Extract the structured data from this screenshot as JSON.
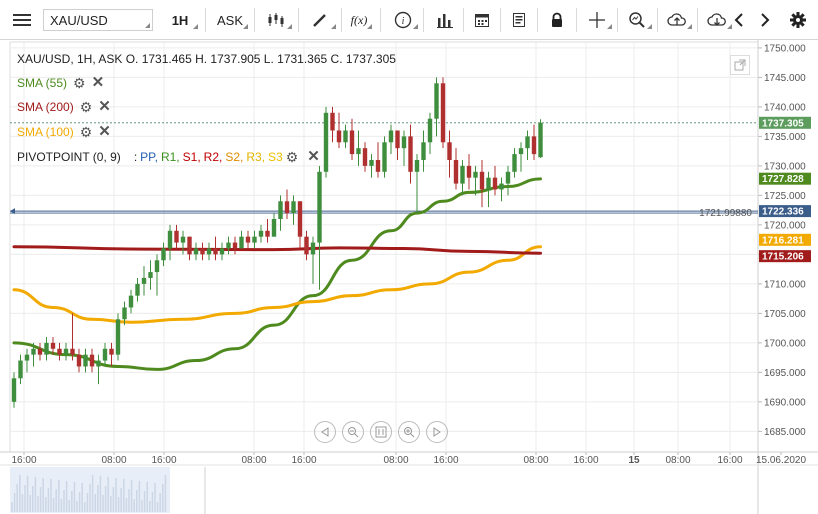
{
  "toolbar": {
    "symbol": "XAU/USD",
    "timeframe": "1H",
    "price_side": "ASK",
    "icons": [
      "menu-icon",
      "candles-icon",
      "draw-icon",
      "fx-icon",
      "info-icon",
      "bar-chart-icon",
      "calendar-icon",
      "news-icon",
      "lock-icon",
      "crosshair-icon",
      "zoom-icon",
      "upload-icon",
      "download-icon",
      "arrow-left-icon",
      "arrow-right-icon",
      "settings-icon"
    ],
    "fx_label": "f(x)"
  },
  "header": {
    "ohlc": "XAU/USD, 1H, ASK   O. 1731.465 H. 1737.905 L. 1731.365 C. 1737.305"
  },
  "indicators": [
    {
      "label": "SMA (55)",
      "color": "#4e8a1e"
    },
    {
      "label": "SMA (200)",
      "color": "#a11b1b"
    },
    {
      "label": "SMA (100)",
      "color": "#f2a900"
    }
  ],
  "pivot": {
    "label": "PIVOTPOINT (0, 9)",
    "sep": ":",
    "items": [
      {
        "label": "PP,",
        "color": "#1f5fb4"
      },
      {
        "label": "R1,",
        "color": "#3a8f1e"
      },
      {
        "label": "S1,",
        "color": "#c00000"
      },
      {
        "label": "R2,",
        "color": "#c00000"
      },
      {
        "label": "S2,",
        "color": "#e08a00"
      },
      {
        "label": "R3,",
        "color": "#e0b400"
      },
      {
        "label": "S3",
        "color": "#f0c000"
      }
    ]
  },
  "price_tags": {
    "last": "1737.305",
    "sma55": "1727.828",
    "hline": "1722.336",
    "hline_left": "1721.99880",
    "sma100": "1716.281",
    "sma200": "1715.206"
  },
  "nav_buttons": [
    "prev-icon",
    "zoom-out-icon",
    "reset-icon",
    "zoom-in-icon",
    "next-icon"
  ],
  "chart_data": {
    "type": "candlestick",
    "symbol": "XAU/USD",
    "interval": "1H",
    "y_ticks": [
      "1750.000",
      "1745.000",
      "1740.000",
      "1735.000",
      "1730.000",
      "1725.000",
      "1720.000",
      "1715.000",
      "1710.000",
      "1705.000",
      "1700.000",
      "1695.000",
      "1690.000",
      "1685.000"
    ],
    "ylim": [
      1681.5,
      1751
    ],
    "x_ticks": [
      "16:00",
      "08:00",
      "16:00",
      "08:00",
      "16:00",
      "08:00",
      "16:00",
      "08:00",
      "16:00",
      "15",
      "08:00",
      "16:00",
      "15.06.2020"
    ],
    "candles": [
      [
        1690,
        1695,
        1689,
        1694
      ],
      [
        1694,
        1698,
        1693,
        1697
      ],
      [
        1697,
        1699,
        1695,
        1698
      ],
      [
        1698,
        1700,
        1696,
        1699
      ],
      [
        1699,
        1700,
        1697,
        1698
      ],
      [
        1698,
        1701,
        1697,
        1700
      ],
      [
        1700,
        1701,
        1698,
        1699
      ],
      [
        1699,
        1700,
        1697,
        1698
      ],
      [
        1698,
        1700,
        1697,
        1699
      ],
      [
        1699,
        1705,
        1697,
        1698
      ],
      [
        1698,
        1699,
        1695,
        1696
      ],
      [
        1696,
        1699,
        1695,
        1698
      ],
      [
        1698,
        1699,
        1695,
        1696
      ],
      [
        1696,
        1698,
        1693,
        1697
      ],
      [
        1697,
        1700,
        1696,
        1699
      ],
      [
        1699,
        1700,
        1696,
        1698
      ],
      [
        1698,
        1705,
        1697,
        1704
      ],
      [
        1704,
        1707,
        1703,
        1706
      ],
      [
        1706,
        1709,
        1705,
        1708
      ],
      [
        1708,
        1711,
        1707,
        1710
      ],
      [
        1710,
        1713,
        1708,
        1711
      ],
      [
        1711,
        1714,
        1709,
        1712
      ],
      [
        1712,
        1715,
        1708,
        1714
      ],
      [
        1714,
        1717,
        1713,
        1716
      ],
      [
        1716,
        1720,
        1714,
        1719
      ],
      [
        1719,
        1720,
        1716,
        1717
      ],
      [
        1717,
        1719,
        1715,
        1718
      ],
      [
        1718,
        1718,
        1714,
        1715
      ],
      [
        1715,
        1717,
        1714,
        1716
      ],
      [
        1716,
        1717,
        1714,
        1715
      ],
      [
        1715,
        1717,
        1714,
        1716
      ],
      [
        1716,
        1718,
        1714,
        1715
      ],
      [
        1715,
        1717,
        1714,
        1716
      ],
      [
        1716,
        1718,
        1715,
        1717
      ],
      [
        1717,
        1718,
        1715,
        1716
      ],
      [
        1716,
        1719,
        1716,
        1718
      ],
      [
        1718,
        1719,
        1716,
        1717
      ],
      [
        1717,
        1719,
        1716,
        1718
      ],
      [
        1718,
        1720,
        1717,
        1719
      ],
      [
        1719,
        1721,
        1717,
        1718
      ],
      [
        1718,
        1722,
        1718,
        1721
      ],
      [
        1721,
        1725,
        1719,
        1724
      ],
      [
        1724,
        1726,
        1721,
        1722
      ],
      [
        1722,
        1725,
        1720,
        1724
      ],
      [
        1724,
        1724,
        1716,
        1718
      ],
      [
        1718,
        1719,
        1714,
        1715
      ],
      [
        1715,
        1718,
        1710,
        1717
      ],
      [
        1717,
        1730,
        1709,
        1729
      ],
      [
        1729,
        1740,
        1728,
        1739
      ],
      [
        1739,
        1740,
        1734,
        1736
      ],
      [
        1736,
        1739,
        1733,
        1734
      ],
      [
        1734,
        1737,
        1733,
        1736
      ],
      [
        1736,
        1738,
        1731,
        1732
      ],
      [
        1732,
        1736,
        1730,
        1733
      ],
      [
        1733,
        1734,
        1729,
        1730
      ],
      [
        1730,
        1732,
        1728,
        1731
      ],
      [
        1731,
        1734,
        1728,
        1729
      ],
      [
        1729,
        1735,
        1728,
        1734
      ],
      [
        1734,
        1737,
        1732,
        1736
      ],
      [
        1736,
        1736,
        1731,
        1733
      ],
      [
        1733,
        1736,
        1730,
        1735
      ],
      [
        1735,
        1737,
        1727,
        1729
      ],
      [
        1729,
        1732,
        1722,
        1731
      ],
      [
        1731,
        1736,
        1729,
        1734
      ],
      [
        1734,
        1739,
        1732,
        1738
      ],
      [
        1738,
        1745,
        1735,
        1744
      ],
      [
        1744,
        1745,
        1733,
        1734
      ],
      [
        1734,
        1736,
        1728,
        1731
      ],
      [
        1731,
        1733,
        1726,
        1727
      ],
      [
        1727,
        1731,
        1725,
        1730
      ],
      [
        1730,
        1732,
        1726,
        1728
      ],
      [
        1728,
        1730,
        1725,
        1729
      ],
      [
        1729,
        1731,
        1723,
        1726
      ],
      [
        1726,
        1729,
        1723,
        1728
      ],
      [
        1728,
        1730,
        1725,
        1726
      ],
      [
        1726,
        1728,
        1724,
        1727
      ],
      [
        1727,
        1730,
        1725,
        1729
      ],
      [
        1729,
        1733,
        1728,
        1732
      ],
      [
        1732,
        1734,
        1729,
        1733
      ],
      [
        1733,
        1736,
        1731,
        1735
      ],
      [
        1735,
        1737,
        1731,
        1732
      ],
      [
        1731.465,
        1737.905,
        1731.365,
        1737.305
      ]
    ],
    "series": [
      {
        "name": "SMA (55)",
        "color": "#4e8a1e",
        "values": [
          [
            0,
            1700
          ],
          [
            8,
            1698
          ],
          [
            16,
            1696
          ],
          [
            22,
            1695.5
          ],
          [
            28,
            1697
          ],
          [
            34,
            1699
          ],
          [
            40,
            1703
          ],
          [
            46,
            1708
          ],
          [
            52,
            1714
          ],
          [
            58,
            1719
          ],
          [
            62,
            1722
          ],
          [
            66,
            1724
          ],
          [
            70,
            1725.5
          ],
          [
            76,
            1726.5
          ],
          [
            81,
            1727.8
          ]
        ]
      },
      {
        "name": "SMA (100)",
        "color": "#f2a900",
        "values": [
          [
            0,
            1709
          ],
          [
            6,
            1706
          ],
          [
            12,
            1704
          ],
          [
            18,
            1703.5
          ],
          [
            26,
            1704
          ],
          [
            34,
            1705
          ],
          [
            40,
            1706
          ],
          [
            46,
            1707
          ],
          [
            52,
            1708
          ],
          [
            58,
            1709
          ],
          [
            64,
            1710
          ],
          [
            70,
            1712
          ],
          [
            76,
            1714
          ],
          [
            81,
            1716.3
          ]
        ]
      },
      {
        "name": "SMA (200)",
        "color": "#a11b1b",
        "values": [
          [
            0,
            1716.3
          ],
          [
            20,
            1715.9
          ],
          [
            40,
            1715.8
          ],
          [
            50,
            1716.1
          ],
          [
            60,
            1716
          ],
          [
            70,
            1715.5
          ],
          [
            81,
            1715.2
          ]
        ]
      }
    ],
    "hlines": [
      1737.305,
      1722.336,
      1721.9988
    ],
    "grid": true
  }
}
